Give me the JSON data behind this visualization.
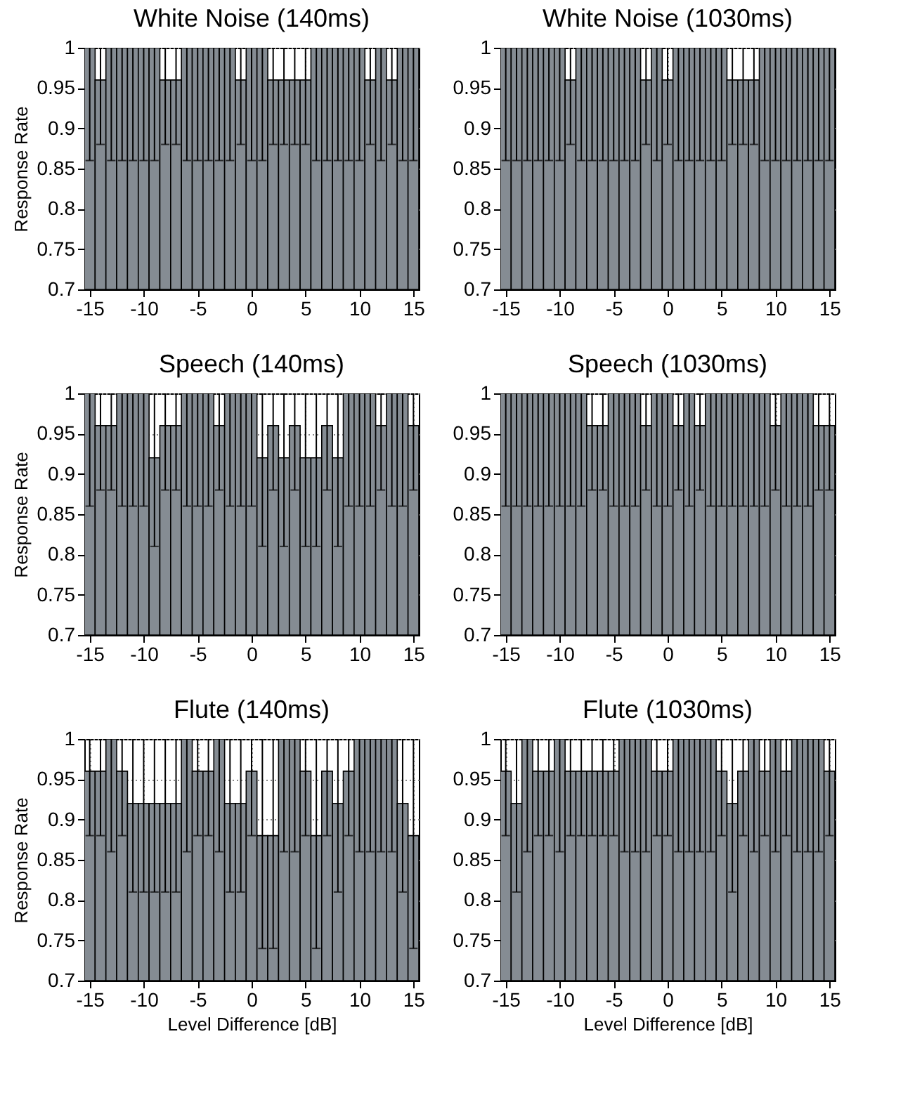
{
  "chart_data": [
    {
      "type": "bar",
      "title": "White Noise (140ms)",
      "ylabel": "Response Rate",
      "x": [
        -15,
        -14,
        -13,
        -12,
        -11,
        -10,
        -9,
        -8,
        -7,
        -6,
        -5,
        -4,
        -3,
        -2,
        -1,
        0,
        1,
        2,
        3,
        4,
        5,
        6,
        7,
        8,
        9,
        10,
        11,
        12,
        13,
        14,
        15
      ],
      "color": "#858c93",
      "xlim": [
        -15.5,
        15.5
      ],
      "xticks": [
        -15,
        -10,
        -5,
        0,
        5,
        10,
        15
      ],
      "ylim": [
        0.7,
        1
      ],
      "yticks": [
        0.7,
        0.75,
        0.8,
        0.85,
        0.9,
        0.95,
        1
      ],
      "grid": true,
      "values": [
        1,
        0.96,
        1,
        1,
        1,
        1,
        1,
        0.96,
        0.96,
        1,
        1,
        1,
        1,
        1,
        0.96,
        1,
        1,
        0.96,
        0.96,
        0.96,
        0.96,
        1,
        1,
        1,
        1,
        1,
        0.96,
        1,
        0.96,
        1,
        1
      ],
      "errors": [
        [
          0.86,
          1
        ],
        [
          0.88,
          1
        ],
        [
          0.86,
          1
        ],
        [
          0.86,
          1
        ],
        [
          0.86,
          1
        ],
        [
          0.86,
          1
        ],
        [
          0.86,
          1
        ],
        [
          0.88,
          1
        ],
        [
          0.88,
          1
        ],
        [
          0.86,
          1
        ],
        [
          0.86,
          1
        ],
        [
          0.86,
          1
        ],
        [
          0.86,
          1
        ],
        [
          0.86,
          1
        ],
        [
          0.88,
          1
        ],
        [
          0.86,
          1
        ],
        [
          0.86,
          1
        ],
        [
          0.88,
          1
        ],
        [
          0.88,
          1
        ],
        [
          0.88,
          1
        ],
        [
          0.88,
          1
        ],
        [
          0.86,
          1
        ],
        [
          0.86,
          1
        ],
        [
          0.86,
          1
        ],
        [
          0.86,
          1
        ],
        [
          0.86,
          1
        ],
        [
          0.88,
          1
        ],
        [
          0.86,
          1
        ],
        [
          0.88,
          1
        ],
        [
          0.86,
          1
        ],
        [
          0.86,
          1
        ]
      ]
    },
    {
      "type": "bar",
      "title": "White Noise (1030ms)",
      "x": [
        -15,
        -14,
        -13,
        -12,
        -11,
        -10,
        -9,
        -8,
        -7,
        -6,
        -5,
        -4,
        -3,
        -2,
        -1,
        0,
        1,
        2,
        3,
        4,
        5,
        6,
        7,
        8,
        9,
        10,
        11,
        12,
        13,
        14,
        15
      ],
      "color": "#858c93",
      "xlim": [
        -15.5,
        15.5
      ],
      "xticks": [
        -15,
        -10,
        -5,
        0,
        5,
        10,
        15
      ],
      "ylim": [
        0.7,
        1
      ],
      "yticks": [
        0.7,
        0.75,
        0.8,
        0.85,
        0.9,
        0.95,
        1
      ],
      "grid": true,
      "values": [
        1,
        1,
        1,
        1,
        1,
        1,
        0.96,
        1,
        1,
        1,
        1,
        1,
        1,
        0.96,
        1,
        0.96,
        1,
        1,
        1,
        1,
        1,
        0.96,
        0.96,
        0.96,
        1,
        1,
        1,
        1,
        1,
        1,
        1
      ],
      "errors": [
        [
          0.86,
          1
        ],
        [
          0.86,
          1
        ],
        [
          0.86,
          1
        ],
        [
          0.86,
          1
        ],
        [
          0.86,
          1
        ],
        [
          0.86,
          1
        ],
        [
          0.88,
          1
        ],
        [
          0.86,
          1
        ],
        [
          0.86,
          1
        ],
        [
          0.86,
          1
        ],
        [
          0.86,
          1
        ],
        [
          0.86,
          1
        ],
        [
          0.86,
          1
        ],
        [
          0.88,
          1
        ],
        [
          0.86,
          1
        ],
        [
          0.88,
          1
        ],
        [
          0.86,
          1
        ],
        [
          0.86,
          1
        ],
        [
          0.86,
          1
        ],
        [
          0.86,
          1
        ],
        [
          0.86,
          1
        ],
        [
          0.88,
          1
        ],
        [
          0.88,
          1
        ],
        [
          0.88,
          1
        ],
        [
          0.86,
          1
        ],
        [
          0.86,
          1
        ],
        [
          0.86,
          1
        ],
        [
          0.86,
          1
        ],
        [
          0.86,
          1
        ],
        [
          0.86,
          1
        ],
        [
          0.86,
          1
        ]
      ]
    },
    {
      "type": "bar",
      "title": "Speech (140ms)",
      "ylabel": "Response Rate",
      "x": [
        -15,
        -14,
        -13,
        -12,
        -11,
        -10,
        -9,
        -8,
        -7,
        -6,
        -5,
        -4,
        -3,
        -2,
        -1,
        0,
        1,
        2,
        3,
        4,
        5,
        6,
        7,
        8,
        9,
        10,
        11,
        12,
        13,
        14,
        15
      ],
      "color": "#858c93",
      "xlim": [
        -15.5,
        15.5
      ],
      "xticks": [
        -15,
        -10,
        -5,
        0,
        5,
        10,
        15
      ],
      "ylim": [
        0.7,
        1
      ],
      "yticks": [
        0.7,
        0.75,
        0.8,
        0.85,
        0.9,
        0.95,
        1
      ],
      "grid": true,
      "values": [
        1,
        0.96,
        0.96,
        1,
        1,
        1,
        0.92,
        0.96,
        0.96,
        1,
        1,
        1,
        0.96,
        1,
        1,
        1,
        0.92,
        0.96,
        0.92,
        0.96,
        0.92,
        0.92,
        0.96,
        0.92,
        1,
        1,
        1,
        0.96,
        1,
        1,
        0.96
      ],
      "errors": [
        [
          0.86,
          1
        ],
        [
          0.88,
          1
        ],
        [
          0.88,
          1
        ],
        [
          0.86,
          1
        ],
        [
          0.86,
          1
        ],
        [
          0.86,
          1
        ],
        [
          0.81,
          1
        ],
        [
          0.88,
          1
        ],
        [
          0.88,
          1
        ],
        [
          0.86,
          1
        ],
        [
          0.86,
          1
        ],
        [
          0.86,
          1
        ],
        [
          0.88,
          1
        ],
        [
          0.86,
          1
        ],
        [
          0.86,
          1
        ],
        [
          0.86,
          1
        ],
        [
          0.81,
          1
        ],
        [
          0.88,
          1
        ],
        [
          0.81,
          1
        ],
        [
          0.88,
          1
        ],
        [
          0.81,
          1
        ],
        [
          0.81,
          1
        ],
        [
          0.88,
          1
        ],
        [
          0.81,
          1
        ],
        [
          0.86,
          1
        ],
        [
          0.86,
          1
        ],
        [
          0.86,
          1
        ],
        [
          0.88,
          1
        ],
        [
          0.86,
          1
        ],
        [
          0.86,
          1
        ],
        [
          0.88,
          1
        ]
      ]
    },
    {
      "type": "bar",
      "title": "Speech (1030ms)",
      "x": [
        -15,
        -14,
        -13,
        -12,
        -11,
        -10,
        -9,
        -8,
        -7,
        -6,
        -5,
        -4,
        -3,
        -2,
        -1,
        0,
        1,
        2,
        3,
        4,
        5,
        6,
        7,
        8,
        9,
        10,
        11,
        12,
        13,
        14,
        15
      ],
      "color": "#858c93",
      "xlim": [
        -15.5,
        15.5
      ],
      "xticks": [
        -15,
        -10,
        -5,
        0,
        5,
        10,
        15
      ],
      "ylim": [
        0.7,
        1
      ],
      "yticks": [
        0.7,
        0.75,
        0.8,
        0.85,
        0.9,
        0.95,
        1
      ],
      "grid": true,
      "values": [
        1,
        1,
        1,
        1,
        1,
        1,
        1,
        1,
        0.96,
        0.96,
        1,
        1,
        1,
        0.96,
        1,
        1,
        0.96,
        1,
        0.96,
        1,
        1,
        1,
        1,
        1,
        1,
        0.96,
        1,
        1,
        1,
        0.96,
        0.96
      ],
      "errors": [
        [
          0.86,
          1
        ],
        [
          0.86,
          1
        ],
        [
          0.86,
          1
        ],
        [
          0.86,
          1
        ],
        [
          0.86,
          1
        ],
        [
          0.86,
          1
        ],
        [
          0.86,
          1
        ],
        [
          0.86,
          1
        ],
        [
          0.88,
          1
        ],
        [
          0.88,
          1
        ],
        [
          0.86,
          1
        ],
        [
          0.86,
          1
        ],
        [
          0.86,
          1
        ],
        [
          0.88,
          1
        ],
        [
          0.86,
          1
        ],
        [
          0.86,
          1
        ],
        [
          0.88,
          1
        ],
        [
          0.86,
          1
        ],
        [
          0.88,
          1
        ],
        [
          0.86,
          1
        ],
        [
          0.86,
          1
        ],
        [
          0.86,
          1
        ],
        [
          0.86,
          1
        ],
        [
          0.86,
          1
        ],
        [
          0.86,
          1
        ],
        [
          0.88,
          1
        ],
        [
          0.86,
          1
        ],
        [
          0.86,
          1
        ],
        [
          0.86,
          1
        ],
        [
          0.88,
          1
        ],
        [
          0.88,
          1
        ]
      ]
    },
    {
      "type": "bar",
      "title": "Flute (140ms)",
      "ylabel": "Response Rate",
      "xlabel": "Level Difference [dB]",
      "x": [
        -15,
        -14,
        -13,
        -12,
        -11,
        -10,
        -9,
        -8,
        -7,
        -6,
        -5,
        -4,
        -3,
        -2,
        -1,
        0,
        1,
        2,
        3,
        4,
        5,
        6,
        7,
        8,
        9,
        10,
        11,
        12,
        13,
        14,
        15
      ],
      "color": "#858c93",
      "xlim": [
        -15.5,
        15.5
      ],
      "xticks": [
        -15,
        -10,
        -5,
        0,
        5,
        10,
        15
      ],
      "ylim": [
        0.7,
        1
      ],
      "yticks": [
        0.7,
        0.75,
        0.8,
        0.85,
        0.9,
        0.95,
        1
      ],
      "grid": true,
      "values": [
        0.96,
        0.96,
        1,
        0.96,
        0.92,
        0.92,
        0.92,
        0.92,
        0.92,
        1,
        0.96,
        0.96,
        1,
        0.92,
        0.92,
        0.96,
        0.88,
        0.88,
        1,
        1,
        0.96,
        0.88,
        0.96,
        0.92,
        0.96,
        1,
        1,
        1,
        1,
        0.92,
        0.88
      ],
      "errors": [
        [
          0.88,
          1
        ],
        [
          0.88,
          1
        ],
        [
          0.86,
          1
        ],
        [
          0.88,
          1
        ],
        [
          0.81,
          1
        ],
        [
          0.81,
          1
        ],
        [
          0.81,
          1
        ],
        [
          0.81,
          1
        ],
        [
          0.81,
          1
        ],
        [
          0.86,
          1
        ],
        [
          0.88,
          1
        ],
        [
          0.88,
          1
        ],
        [
          0.86,
          1
        ],
        [
          0.81,
          1
        ],
        [
          0.81,
          1
        ],
        [
          0.88,
          1
        ],
        [
          0.74,
          1
        ],
        [
          0.74,
          1
        ],
        [
          0.86,
          1
        ],
        [
          0.86,
          1
        ],
        [
          0.88,
          1
        ],
        [
          0.74,
          1
        ],
        [
          0.88,
          1
        ],
        [
          0.81,
          1
        ],
        [
          0.88,
          1
        ],
        [
          0.86,
          1
        ],
        [
          0.86,
          1
        ],
        [
          0.86,
          1
        ],
        [
          0.86,
          1
        ],
        [
          0.81,
          1
        ],
        [
          0.74,
          1
        ]
      ]
    },
    {
      "type": "bar",
      "title": "Flute (1030ms)",
      "xlabel": "Level Difference [dB]",
      "x": [
        -15,
        -14,
        -13,
        -12,
        -11,
        -10,
        -9,
        -8,
        -7,
        -6,
        -5,
        -4,
        -3,
        -2,
        -1,
        0,
        1,
        2,
        3,
        4,
        5,
        6,
        7,
        8,
        9,
        10,
        11,
        12,
        13,
        14,
        15
      ],
      "color": "#858c93",
      "xlim": [
        -15.5,
        15.5
      ],
      "xticks": [
        -15,
        -10,
        -5,
        0,
        5,
        10,
        15
      ],
      "ylim": [
        0.7,
        1
      ],
      "yticks": [
        0.7,
        0.75,
        0.8,
        0.85,
        0.9,
        0.95,
        1
      ],
      "grid": true,
      "values": [
        0.96,
        0.92,
        1,
        0.96,
        0.96,
        1,
        0.96,
        0.96,
        0.96,
        0.96,
        0.96,
        1,
        1,
        1,
        0.96,
        0.96,
        1,
        1,
        1,
        1,
        0.96,
        0.92,
        0.96,
        1,
        0.96,
        1,
        0.96,
        1,
        1,
        1,
        0.96
      ],
      "errors": [
        [
          0.88,
          1
        ],
        [
          0.81,
          1
        ],
        [
          0.86,
          1
        ],
        [
          0.88,
          1
        ],
        [
          0.88,
          1
        ],
        [
          0.86,
          1
        ],
        [
          0.88,
          1
        ],
        [
          0.88,
          1
        ],
        [
          0.88,
          1
        ],
        [
          0.88,
          1
        ],
        [
          0.88,
          1
        ],
        [
          0.86,
          1
        ],
        [
          0.86,
          1
        ],
        [
          0.86,
          1
        ],
        [
          0.88,
          1
        ],
        [
          0.88,
          1
        ],
        [
          0.86,
          1
        ],
        [
          0.86,
          1
        ],
        [
          0.86,
          1
        ],
        [
          0.86,
          1
        ],
        [
          0.88,
          1
        ],
        [
          0.81,
          1
        ],
        [
          0.88,
          1
        ],
        [
          0.86,
          1
        ],
        [
          0.88,
          1
        ],
        [
          0.86,
          1
        ],
        [
          0.88,
          1
        ],
        [
          0.86,
          1
        ],
        [
          0.86,
          1
        ],
        [
          0.86,
          1
        ],
        [
          0.88,
          1
        ]
      ]
    }
  ]
}
